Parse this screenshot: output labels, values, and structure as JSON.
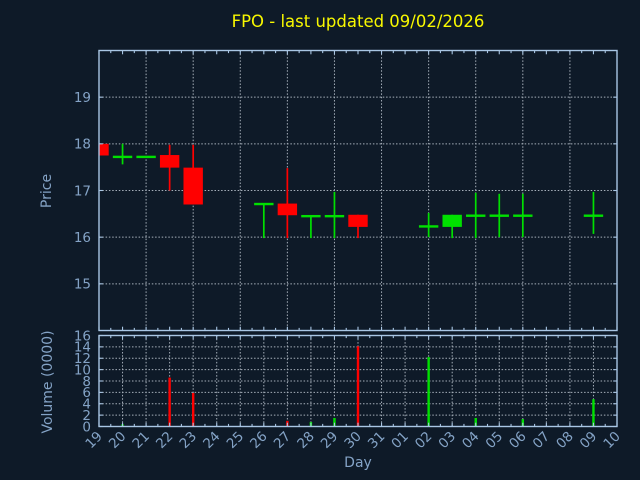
{
  "title": "FPO - last updated 09/02/2026",
  "colors": {
    "background": "#0e1a28",
    "axis": "#a9c6e4",
    "text": "#84a3c6",
    "grid": "#ccd5df",
    "title": "#f8f800",
    "up": "#00e000",
    "down": "#ff0000"
  },
  "chart_data": {
    "type": "candlestick+volume",
    "title": "FPO - last updated 09/02/2026",
    "xlabel": "Day",
    "legend": "none",
    "grid": "dashed, on",
    "price_panel": {
      "ylabel": "Price",
      "ylim": [
        14,
        20
      ],
      "yticks": [
        15,
        16,
        17,
        18,
        19
      ]
    },
    "volume_panel": {
      "ylabel": "Volume (0000)",
      "ylim": [
        0,
        16
      ],
      "yticks": [
        0,
        2,
        4,
        6,
        8,
        10,
        12,
        14,
        16
      ]
    },
    "days": [
      {
        "label": "19",
        "open": 18.0,
        "high": 18.0,
        "low": 17.75,
        "close": 17.75,
        "volume": 0
      },
      {
        "label": "20",
        "open": 17.72,
        "high": 18.0,
        "low": 17.56,
        "close": 17.72,
        "volume": 0.4
      },
      {
        "label": "21",
        "open": 17.72,
        "high": 17.72,
        "low": 17.72,
        "close": 17.72,
        "volume": 0
      },
      {
        "label": "22",
        "open": 17.76,
        "high": 17.98,
        "low": 17.0,
        "close": 17.49,
        "volume": 8.6
      },
      {
        "label": "23",
        "open": 17.49,
        "high": 17.98,
        "low": 16.7,
        "close": 16.7,
        "volume": 5.9
      },
      {
        "label": "24"
      },
      {
        "label": "25"
      },
      {
        "label": "26",
        "open": 16.71,
        "high": 16.71,
        "low": 15.98,
        "close": 16.71,
        "volume": 0
      },
      {
        "label": "27",
        "open": 16.72,
        "high": 17.48,
        "low": 15.98,
        "close": 16.47,
        "volume": 1.0
      },
      {
        "label": "28",
        "open": 16.45,
        "high": 16.45,
        "low": 15.98,
        "close": 16.45,
        "volume": 0.8
      },
      {
        "label": "29",
        "open": 16.45,
        "high": 16.97,
        "low": 15.98,
        "close": 16.45,
        "volume": 1.5
      },
      {
        "label": "30",
        "open": 16.48,
        "high": 16.48,
        "low": 15.98,
        "close": 16.22,
        "volume": 14.1
      },
      {
        "label": "31"
      },
      {
        "label": "01"
      },
      {
        "label": "02",
        "open": 16.23,
        "high": 16.52,
        "low": 16.0,
        "close": 16.23,
        "volume": 12.2
      },
      {
        "label": "03",
        "open": 16.22,
        "high": 16.48,
        "low": 15.98,
        "close": 16.48,
        "volume": 0
      },
      {
        "label": "04",
        "open": 16.46,
        "high": 16.95,
        "low": 15.98,
        "close": 16.46,
        "volume": 1.5
      },
      {
        "label": "05",
        "open": 16.46,
        "high": 16.93,
        "low": 16.0,
        "close": 16.46,
        "volume": 0
      },
      {
        "label": "06",
        "open": 16.46,
        "high": 16.93,
        "low": 16.0,
        "close": 16.46,
        "volume": 1.3
      },
      {
        "label": "07"
      },
      {
        "label": "08"
      },
      {
        "label": "09",
        "open": 16.46,
        "high": 16.97,
        "low": 16.07,
        "close": 16.46,
        "volume": 4.8
      },
      {
        "label": "10"
      }
    ]
  }
}
